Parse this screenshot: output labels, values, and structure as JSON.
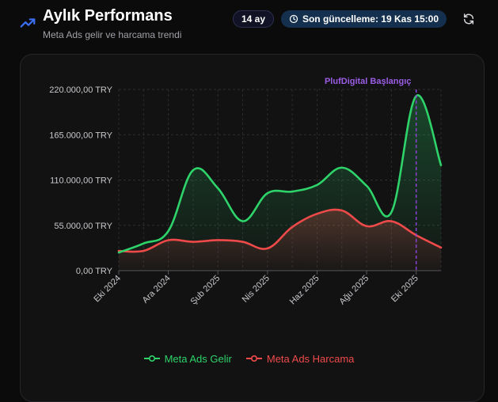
{
  "header": {
    "title": "Aylık Performans",
    "subtitle": "Meta Ads gelir ve harcama trendi",
    "period_label": "14 ay",
    "updated_label": "Son güncelleme: 19 Kas 15:00",
    "icons": {
      "title": "trending-up-icon",
      "clock": "clock-icon",
      "refresh": "refresh-icon"
    }
  },
  "colors": {
    "revenue": "#2ed36a",
    "spend": "#ef4a4a",
    "marker": "#8a3fd6",
    "marker_label": "#9b5de5"
  },
  "chart_data": {
    "type": "area",
    "ylim": [
      0,
      220000
    ],
    "yticks": [
      0,
      55000,
      110000,
      165000,
      220000
    ],
    "ytick_labels": [
      "0,00 TRY",
      "55.000,00 TRY",
      "110.000,00 TRY",
      "165.000,00 TRY",
      "220.000,00 TRY"
    ],
    "x_tick_labels": [
      "Eki 2024",
      "Ara 2024",
      "Şub 2025",
      "Nis 2025",
      "Haz 2025",
      "Ağu 2025",
      "Eki 2025"
    ],
    "x": [
      0,
      1,
      2,
      3,
      4,
      5,
      6,
      7,
      8,
      9,
      10,
      11,
      12,
      13
    ],
    "grid": true,
    "legend_position": "bottom",
    "series": [
      {
        "name": "Meta Ads Gelir",
        "values": [
          22000,
          33000,
          48000,
          122000,
          100000,
          60000,
          94000,
          96000,
          104000,
          125000,
          103000,
          71000,
          212000,
          128000
        ]
      },
      {
        "name": "Meta Ads Harcama",
        "values": [
          24000,
          24000,
          37000,
          35000,
          37000,
          35000,
          27000,
          53000,
          69000,
          73000,
          54000,
          60000,
          43000,
          28000
        ]
      }
    ],
    "annotations": [
      {
        "label": "PlufDigital Başlangıç",
        "x": 12
      }
    ]
  }
}
